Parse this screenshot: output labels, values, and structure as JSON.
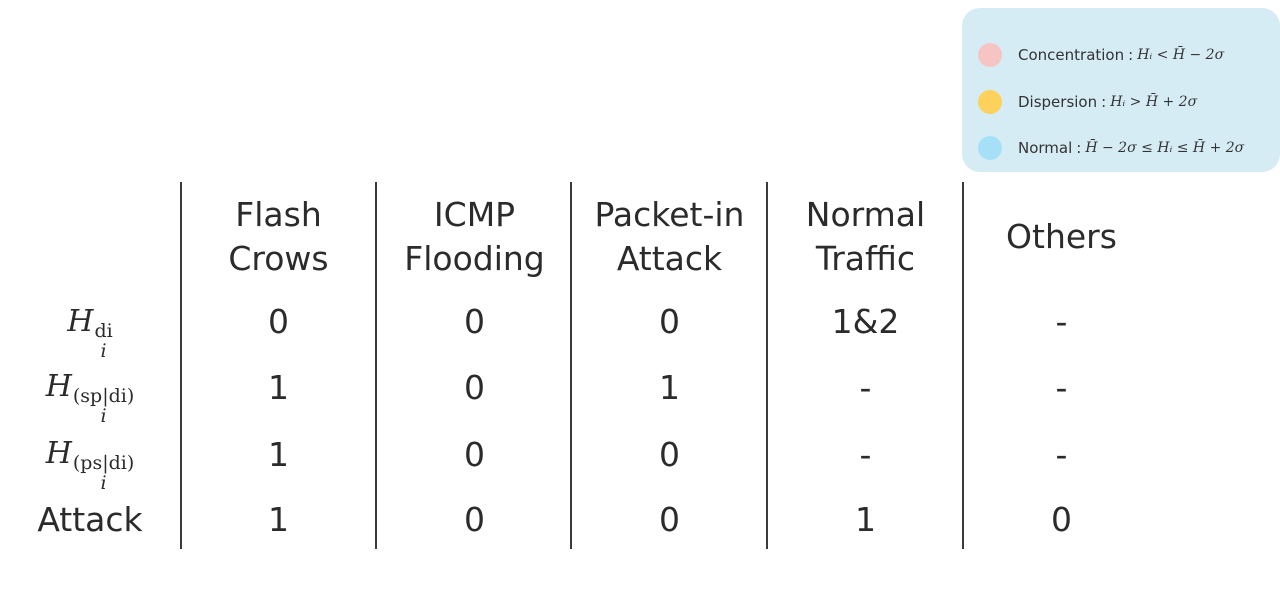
{
  "legend": {
    "items": [
      {
        "label": "Concentration",
        "formula": "Hᵢ < H̄ − 2σ",
        "color": "#f7c4c4"
      },
      {
        "label": "Dispersion",
        "formula": "Hᵢ > H̄ + 2σ",
        "color": "#fcd25c"
      },
      {
        "label": "Normal",
        "formula": "H̄ − 2σ ≤ Hᵢ ≤ H̄ + 2σ",
        "color": "#a6e0f7"
      }
    ],
    "separator": ":"
  },
  "table": {
    "columns": [
      {
        "line1": "Flash",
        "line2": "Crows"
      },
      {
        "line1": "ICMP",
        "line2": "Flooding"
      },
      {
        "line1": "Packet-in",
        "line2": "Attack"
      },
      {
        "line1": "Normal",
        "line2": "Traffic"
      },
      {
        "line1": "Others",
        "line2": ""
      }
    ],
    "rows": [
      {
        "head_base": "H",
        "head_sup": "di",
        "head_sub": "i",
        "values": [
          "0",
          "0",
          "0",
          "1&2",
          "-"
        ]
      },
      {
        "head_base": "H",
        "head_sup": "(sp|di)",
        "head_sub": "i",
        "values": [
          "1",
          "0",
          "1",
          "-",
          "-"
        ]
      },
      {
        "head_base": "H",
        "head_sup": "(ps|di)",
        "head_sub": "i",
        "values": [
          "1",
          "0",
          "0",
          "-",
          "-"
        ]
      },
      {
        "head_text": "Attack",
        "values": [
          "1",
          "0",
          "0",
          "1",
          "0"
        ]
      }
    ]
  }
}
